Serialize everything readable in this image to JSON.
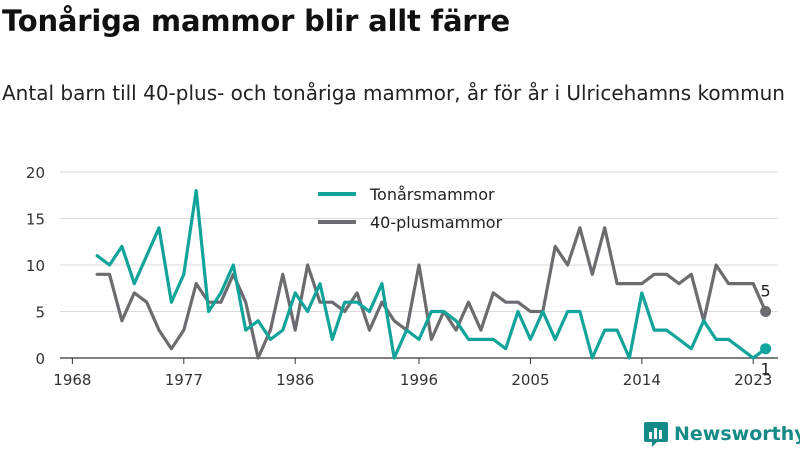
{
  "title": "Tonåriga mammor blir allt färre",
  "subtitle": "Antal barn till 40-plus- och tonåriga mammor, år för år i Ulricehamns kommun",
  "brand": {
    "name": "Newsworthy",
    "logo_icon": "bar-chart-icon",
    "color": "#168a86"
  },
  "chart_data": {
    "type": "line",
    "x_ticks": [
      1968,
      1977,
      1986,
      1996,
      2005,
      2014,
      2023
    ],
    "y_ticks": [
      0,
      5,
      10,
      15,
      20
    ],
    "ylim": [
      0,
      20
    ],
    "xlim": [
      1967,
      2025
    ],
    "grid": true,
    "legend_position": "top-center",
    "series": [
      {
        "name": "Tonårsmammor",
        "color": "#12a39a",
        "x": [
          1970,
          1971,
          1972,
          1973,
          1974,
          1975,
          1976,
          1977,
          1978,
          1979,
          1980,
          1981,
          1982,
          1983,
          1984,
          1985,
          1986,
          1987,
          1988,
          1989,
          1990,
          1991,
          1992,
          1993,
          1994,
          1995,
          1996,
          1997,
          1998,
          1999,
          2000,
          2001,
          2002,
          2003,
          2004,
          2005,
          2006,
          2007,
          2008,
          2009,
          2010,
          2011,
          2012,
          2013,
          2014,
          2015,
          2016,
          2017,
          2018,
          2019,
          2020,
          2021,
          2022,
          2023,
          2024
        ],
        "values": [
          11,
          10,
          12,
          8,
          11,
          14,
          6,
          9,
          18,
          5,
          7,
          10,
          3,
          4,
          2,
          3,
          7,
          5,
          8,
          2,
          6,
          6,
          5,
          8,
          0,
          3,
          2,
          5,
          5,
          4,
          2,
          2,
          2,
          1,
          5,
          2,
          5,
          2,
          5,
          5,
          0,
          3,
          3,
          0,
          7,
          3,
          3,
          2,
          1,
          4,
          2,
          2,
          1,
          0,
          1
        ],
        "end_label": "1"
      },
      {
        "name": "40-plusmammor",
        "color": "#6b6b70",
        "x": [
          1970,
          1971,
          1972,
          1973,
          1974,
          1975,
          1976,
          1977,
          1978,
          1979,
          1980,
          1981,
          1982,
          1983,
          1984,
          1985,
          1986,
          1987,
          1988,
          1989,
          1990,
          1991,
          1992,
          1993,
          1994,
          1995,
          1996,
          1997,
          1998,
          1999,
          2000,
          2001,
          2002,
          2003,
          2004,
          2005,
          2006,
          2007,
          2008,
          2009,
          2010,
          2011,
          2012,
          2013,
          2014,
          2015,
          2016,
          2017,
          2018,
          2019,
          2020,
          2021,
          2022,
          2023,
          2024
        ],
        "values": [
          9,
          9,
          4,
          7,
          6,
          3,
          1,
          3,
          8,
          6,
          6,
          9,
          6,
          0,
          3,
          9,
          3,
          10,
          6,
          6,
          5,
          7,
          3,
          6,
          4,
          3,
          10,
          2,
          5,
          3,
          6,
          3,
          7,
          6,
          6,
          5,
          5,
          12,
          10,
          14,
          9,
          14,
          8,
          8,
          8,
          9,
          9,
          8,
          9,
          4,
          10,
          8,
          8,
          8,
          5
        ],
        "end_label": "5"
      }
    ]
  }
}
